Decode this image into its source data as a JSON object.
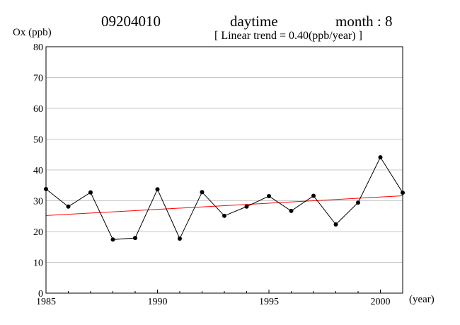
{
  "header": {
    "station": "09204010",
    "period": "daytime",
    "month": "month : 8",
    "trend": "[ Linear trend = 0.40(ppb/year) ]"
  },
  "chart_data": {
    "type": "line",
    "title": "",
    "ylabel": "Ox (ppb)",
    "xlabel": "(year)",
    "xlim": [
      1985,
      2001
    ],
    "ylim": [
      0,
      80
    ],
    "x_ticks": [
      1985,
      1990,
      1995,
      2000
    ],
    "y_ticks": [
      0,
      10,
      20,
      30,
      40,
      50,
      60,
      70,
      80
    ],
    "grid": "horizontal",
    "series": [
      {
        "x": [
          1985,
          1986,
          1987,
          1988,
          1989,
          1990,
          1991,
          1992,
          1993,
          1994,
          1995,
          1996,
          1997,
          1998,
          1999,
          2000,
          2001
        ],
        "values": [
          33.8,
          28.1,
          32.7,
          17.4,
          17.9,
          33.7,
          17.7,
          32.8,
          25.1,
          28.1,
          31.5,
          26.7,
          31.6,
          22.3,
          29.4,
          44.1,
          32.6
        ],
        "color": "#000000",
        "markers": true
      }
    ],
    "trendline": {
      "slope": 0.4,
      "x": [
        1985,
        2001
      ],
      "values": [
        25.2,
        31.6
      ],
      "color": "#ff0000"
    }
  }
}
